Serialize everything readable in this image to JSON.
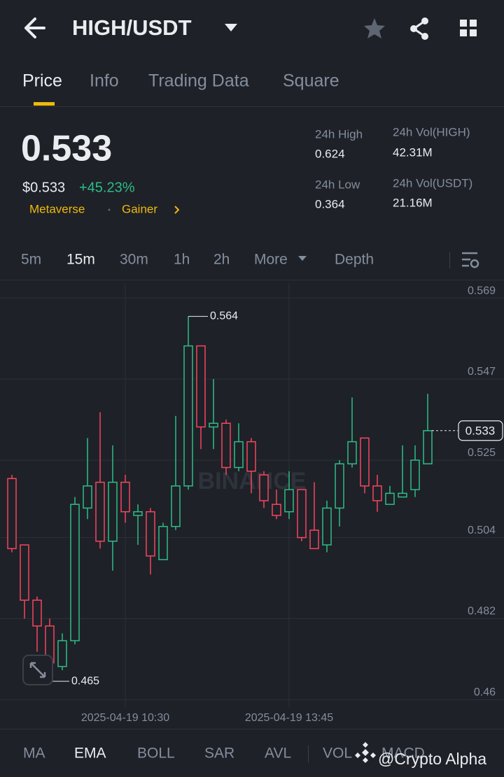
{
  "header": {
    "pair": "HIGH/USDT"
  },
  "tabs": [
    "Price",
    "Info",
    "Trading Data",
    "Square"
  ],
  "ticker": {
    "price": "0.533",
    "fiat_price": "$0.533",
    "change": "+45.23%",
    "tags": [
      "Metaverse",
      "Gainer"
    ],
    "stats": [
      {
        "label": "24h High",
        "value": "0.624"
      },
      {
        "label": "24h Vol(HIGH)",
        "value": "42.31M"
      },
      {
        "label": "24h Low",
        "value": "0.364"
      },
      {
        "label": "24h Vol(USDT)",
        "value": "21.16M"
      }
    ]
  },
  "intervals": [
    "5m",
    "15m",
    "30m",
    "1h",
    "2h",
    "More",
    "Depth"
  ],
  "indicators": [
    "MA",
    "EMA",
    "BOLL",
    "SAR",
    "AVL",
    "VOL",
    "MACD"
  ],
  "watermark": "@Crypto Alpha",
  "chart_data": {
    "type": "candlestick",
    "watermark": "BINANCE",
    "categories": [
      null,
      null,
      null,
      null,
      null,
      null,
      null,
      null,
      null,
      "2025-04-19 10:30",
      null,
      null,
      null,
      null,
      null,
      null,
      null,
      null,
      null,
      null,
      null,
      null,
      "2025-04-19 13:45",
      null,
      null,
      null,
      null,
      null,
      null,
      null,
      null,
      null,
      null,
      null
    ],
    "open": [
      0.52,
      0.502,
      0.487,
      0.48,
      0.469,
      0.476,
      0.512,
      0.519,
      0.503,
      0.519,
      0.51,
      0.511,
      0.498,
      0.507,
      0.518,
      0.556,
      0.534,
      0.535,
      0.523,
      0.53,
      0.521,
      0.513,
      0.511,
      0.517,
      0.506,
      0.502,
      0.512,
      0.524,
      0.531,
      0.518,
      0.513,
      0.515,
      0.517,
      0.524
    ],
    "high": [
      0.521,
      0.502,
      0.488,
      0.482,
      0.478,
      0.515,
      0.531,
      0.538,
      0.529,
      0.521,
      0.513,
      0.512,
      0.508,
      0.537,
      0.564,
      0.556,
      0.547,
      0.536,
      0.535,
      0.531,
      0.522,
      0.517,
      0.522,
      0.517,
      0.519,
      0.514,
      0.525,
      0.542,
      0.531,
      0.521,
      0.518,
      0.529,
      0.529,
      0.543
    ],
    "low": [
      0.5,
      0.482,
      0.473,
      0.465,
      0.468,
      0.475,
      0.509,
      0.501,
      0.495,
      0.508,
      0.502,
      0.494,
      0.498,
      0.506,
      0.517,
      0.528,
      0.528,
      0.521,
      0.522,
      0.516,
      0.512,
      0.509,
      0.509,
      0.503,
      0.501,
      0.5,
      0.507,
      0.523,
      0.516,
      0.511,
      0.513,
      0.515,
      0.515,
      0.524
    ],
    "close": [
      0.501,
      0.487,
      0.48,
      0.47,
      0.476,
      0.513,
      0.518,
      0.503,
      0.519,
      0.511,
      0.511,
      0.499,
      0.507,
      0.518,
      0.556,
      0.534,
      0.535,
      0.523,
      0.53,
      0.522,
      0.514,
      0.51,
      0.517,
      0.504,
      0.501,
      0.512,
      0.524,
      0.53,
      0.518,
      0.514,
      0.516,
      0.516,
      0.525,
      0.533
    ],
    "up_color": "#2ebd85",
    "down_color": "#f6465d",
    "last_price": 0.533,
    "ylim": [
      0.458,
      0.573
    ],
    "yticks": [
      0.46,
      0.482,
      0.504,
      0.525,
      0.547,
      0.569
    ],
    "grid": true
  }
}
